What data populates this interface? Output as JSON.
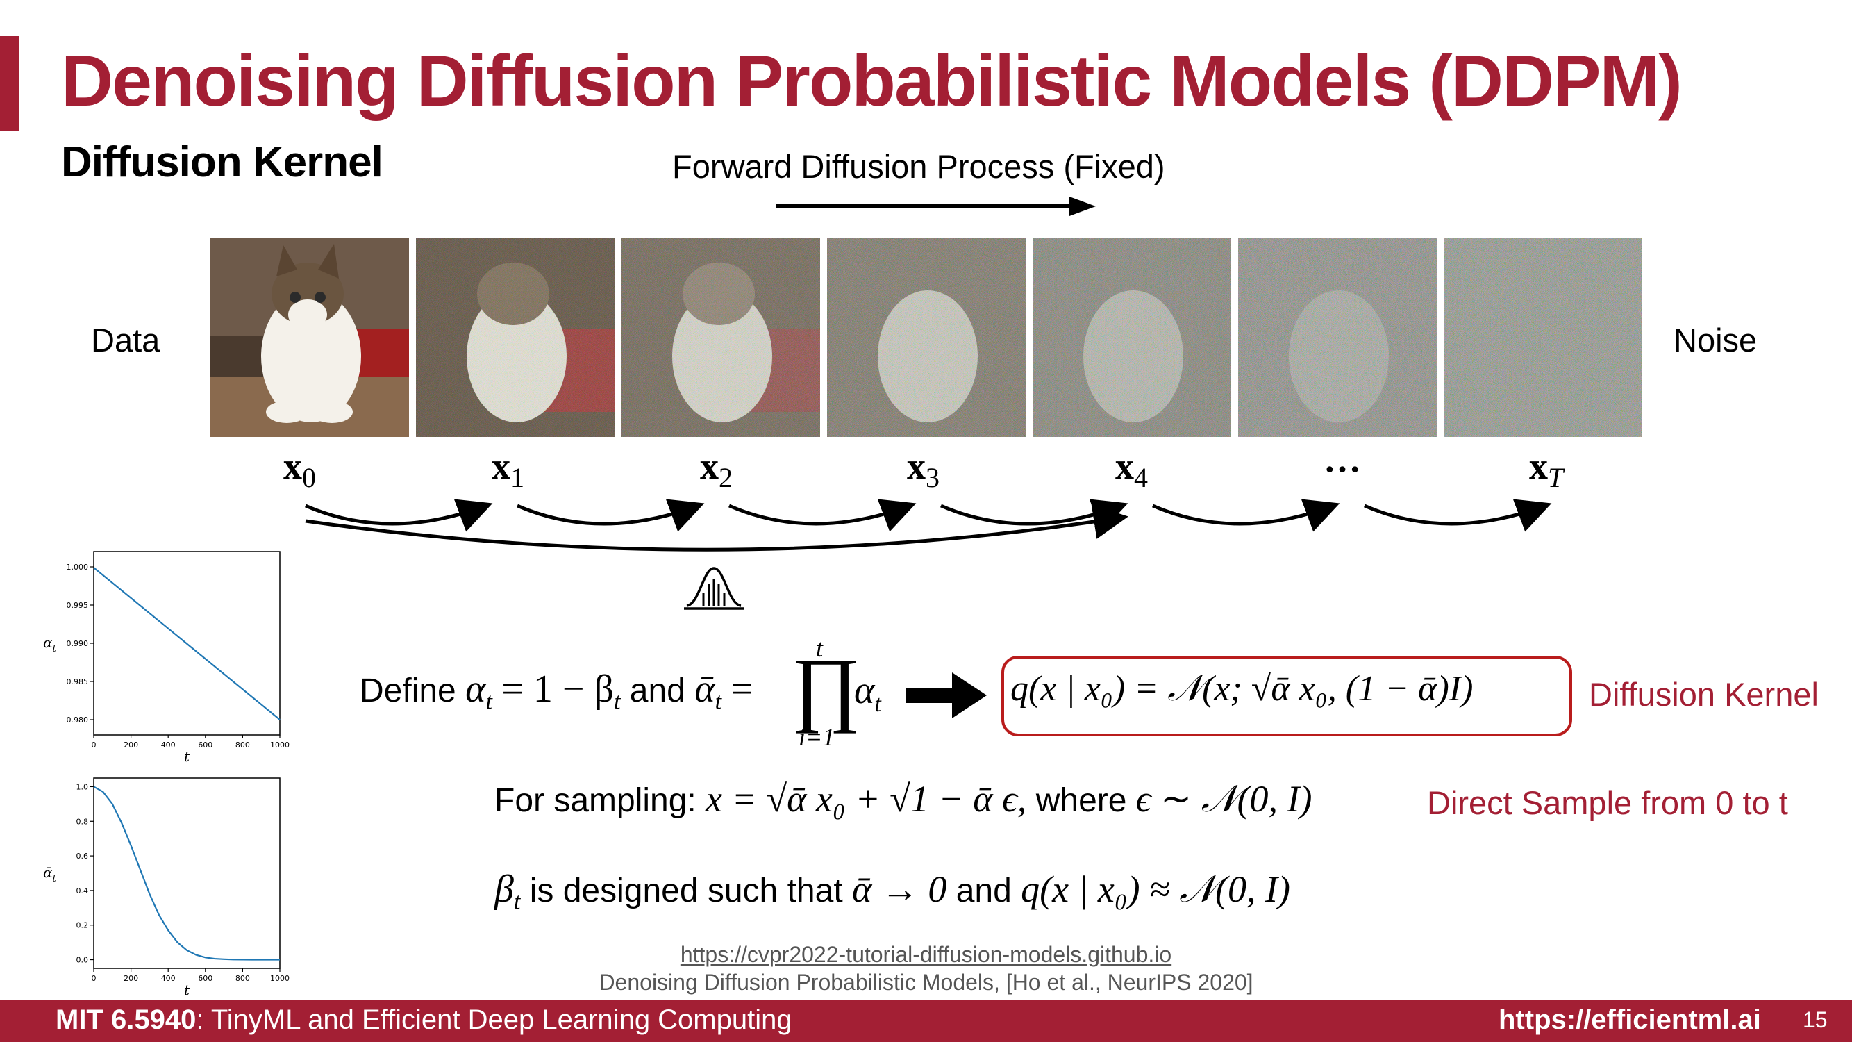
{
  "slide": {
    "title": "Denoising Diffusion Probabilistic Models (DDPM)",
    "subtitle": "Diffusion Kernel",
    "forward_label": "Forward Diffusion Process (Fixed)",
    "data_label": "Data",
    "noise_label": "Noise"
  },
  "sequence": {
    "labels": [
      "x",
      "x",
      "x",
      "x",
      "x",
      "…",
      "x"
    ],
    "subscripts": [
      "0",
      "1",
      "2",
      "3",
      "4",
      "",
      "T"
    ]
  },
  "equations": {
    "define_prefix": "Define",
    "define_alpha": "α",
    "define_sub_t": "t",
    "define_eq": "= 1 − β",
    "define_and": "and",
    "define_abar": "ᾱ",
    "prod_top": "t",
    "prod_bottom": "i=1",
    "prod_symbol": "∏",
    "kernel_formula": "q(x | x₀) = 𝒩(x; √ᾱ x₀, (1 − ᾱ)I)",
    "kernel_label": "Diffusion Kernel",
    "sampling_prefix": "For sampling:",
    "sampling_formula": "x = √ᾱ x₀ + √1 − ᾱ ϵ,",
    "sampling_where": "where",
    "sampling_dist": "ϵ ∼ 𝒩(0, I)",
    "direct_sample_label": "Direct Sample from 0 to t",
    "beta_prefix": "β",
    "beta_text": "is designed such that",
    "beta_limit": "ᾱ → 0",
    "beta_and": "and",
    "beta_dist": "q(x | x₀) ≈ 𝒩(0, I)"
  },
  "references": {
    "url": "https://cvpr2022-tutorial-diffusion-models.github.io",
    "paper": "Denoising Diffusion Probabilistic Models, [Ho et al., NeurIPS 2020]"
  },
  "footer": {
    "course_code": "MIT 6.5940",
    "course_name": ": TinyML and Efficient Deep Learning Computing",
    "site": "https://efficientml.ai",
    "page": "15"
  },
  "colors": {
    "accent": "#a31f34",
    "line": "#1f77b4",
    "kernel_red": "#b91c1c"
  },
  "chart_data": [
    {
      "type": "line",
      "ylabel": "α_t",
      "xlabel": "t",
      "xlim": [
        0,
        1000
      ],
      "ylim": [
        0.978,
        1.002
      ],
      "x_ticks": [
        0,
        200,
        400,
        600,
        800,
        1000
      ],
      "y_ticks": [
        0.98,
        0.985,
        0.99,
        0.995,
        1.0
      ],
      "y_tick_labels": [
        "0.980",
        "0.985",
        "0.990",
        "0.995",
        "1.000"
      ],
      "x": [
        0,
        1000
      ],
      "y": [
        0.9999,
        0.98
      ]
    },
    {
      "type": "line",
      "ylabel": "ᾱ_t",
      "xlabel": "t",
      "xlim": [
        0,
        1000
      ],
      "ylim": [
        -0.05,
        1.05
      ],
      "x_ticks": [
        0,
        200,
        400,
        600,
        800,
        1000
      ],
      "y_ticks": [
        0.0,
        0.2,
        0.4,
        0.6,
        0.8,
        1.0
      ],
      "y_tick_labels": [
        "0.0",
        "0.2",
        "0.4",
        "0.6",
        "0.8",
        "1.0"
      ],
      "x": [
        0,
        50,
        100,
        150,
        200,
        250,
        300,
        350,
        400,
        450,
        500,
        550,
        600,
        650,
        700,
        750,
        800,
        850,
        900,
        950,
        1000
      ],
      "y": [
        1.0,
        0.97,
        0.9,
        0.79,
        0.66,
        0.52,
        0.38,
        0.26,
        0.17,
        0.1,
        0.055,
        0.028,
        0.013,
        0.006,
        0.003,
        0.001,
        0.0005,
        0.0002,
        0.0001,
        5e-05,
        4e-05
      ]
    }
  ]
}
